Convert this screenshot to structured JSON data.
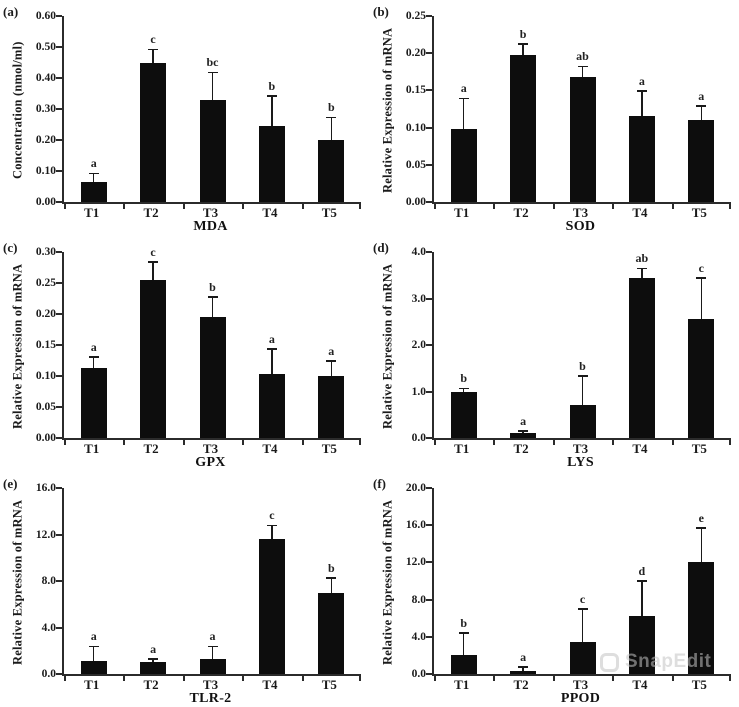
{
  "figure": {
    "watermark": "SnapEdit",
    "colors": {
      "bar": "#0d0d0d",
      "axis": "#2b2b2b",
      "text": "#1a1a1a",
      "watermark": "#c4c4c4"
    }
  },
  "chart_data": [
    {
      "type": "bar",
      "panel_label": "(a)",
      "title": "MDA",
      "ylabel": "Concentration (nmol/ml)",
      "categories": [
        "T1",
        "T2",
        "T3",
        "T4",
        "T5"
      ],
      "values": [
        0.065,
        0.45,
        0.33,
        0.245,
        0.2
      ],
      "errors": [
        0.025,
        0.04,
        0.085,
        0.095,
        0.07
      ],
      "sig_letters": [
        "a",
        "c",
        "bc",
        "b",
        "b"
      ],
      "ylim": [
        0,
        0.6
      ],
      "yticks": [
        "0.00",
        "0.10",
        "0.20",
        "0.30",
        "0.40",
        "0.50",
        "0.60"
      ],
      "legend": "none",
      "grid": false
    },
    {
      "type": "bar",
      "panel_label": "(b)",
      "title": "SOD",
      "ylabel": "Relative Expression of mRNA",
      "categories": [
        "T1",
        "T2",
        "T3",
        "T4",
        "T5"
      ],
      "values": [
        0.098,
        0.198,
        0.168,
        0.115,
        0.11
      ],
      "errors": [
        0.04,
        0.013,
        0.013,
        0.033,
        0.018
      ],
      "sig_letters": [
        "a",
        "b",
        "ab",
        "a",
        "a"
      ],
      "ylim": [
        0,
        0.25
      ],
      "yticks": [
        "0.00",
        "0.05",
        "0.10",
        "0.15",
        "0.20",
        "0.25"
      ],
      "legend": "none",
      "grid": false
    },
    {
      "type": "bar",
      "panel_label": "(c)",
      "title": "GPX",
      "ylabel": "Relative Expression of mRNA",
      "categories": [
        "T1",
        "T2",
        "T3",
        "T4",
        "T5"
      ],
      "values": [
        0.113,
        0.255,
        0.195,
        0.103,
        0.1
      ],
      "errors": [
        0.016,
        0.028,
        0.031,
        0.039,
        0.023
      ],
      "sig_letters": [
        "a",
        "c",
        "b",
        "a",
        "a"
      ],
      "ylim": [
        0,
        0.3
      ],
      "yticks": [
        "0.00",
        "0.05",
        "0.10",
        "0.15",
        "0.20",
        "0.25",
        "0.30"
      ],
      "legend": "none",
      "grid": false
    },
    {
      "type": "bar",
      "panel_label": "(d)",
      "title": "LYS",
      "ylabel": "Relative Expression of mRNA",
      "categories": [
        "T1",
        "T2",
        "T3",
        "T4",
        "T5"
      ],
      "values": [
        1.0,
        0.1,
        0.72,
        3.45,
        2.55
      ],
      "errors": [
        0.05,
        0.04,
        0.6,
        0.18,
        0.88
      ],
      "sig_letters": [
        "b",
        "a",
        "b",
        "ab",
        "c"
      ],
      "ylim": [
        0,
        4.0
      ],
      "yticks": [
        "0.0",
        "1.0",
        "2.0",
        "3.0",
        "4.0"
      ],
      "legend": "none",
      "grid": false
    },
    {
      "type": "bar",
      "panel_label": "(e)",
      "title": "TLR-2",
      "ylabel": "Relative Expression of mRNA",
      "categories": [
        "T1",
        "T2",
        "T3",
        "T4",
        "T5"
      ],
      "values": [
        1.1,
        1.0,
        1.3,
        11.6,
        7.0
      ],
      "errors": [
        1.2,
        0.2,
        1.0,
        1.1,
        1.2
      ],
      "sig_letters": [
        "a",
        "a",
        "a",
        "c",
        "b"
      ],
      "ylim": [
        0,
        16.0
      ],
      "yticks": [
        "0.0",
        "4.0",
        "8.0",
        "12.0",
        "16.0"
      ],
      "legend": "none",
      "grid": false
    },
    {
      "type": "bar",
      "panel_label": "(f)",
      "title": "PPOD",
      "ylabel": "Relative Expression of mRNA",
      "categories": [
        "T1",
        "T2",
        "T3",
        "T4",
        "T5"
      ],
      "values": [
        2.0,
        0.3,
        3.4,
        6.2,
        12.0
      ],
      "errors": [
        2.3,
        0.4,
        3.5,
        3.7,
        3.6
      ],
      "sig_letters": [
        "b",
        "a",
        "c",
        "d",
        "e"
      ],
      "ylim": [
        0,
        20.0
      ],
      "yticks": [
        "0.0",
        "4.0",
        "8.0",
        "12.0",
        "16.0",
        "20.0"
      ],
      "legend": "none",
      "grid": false
    }
  ]
}
